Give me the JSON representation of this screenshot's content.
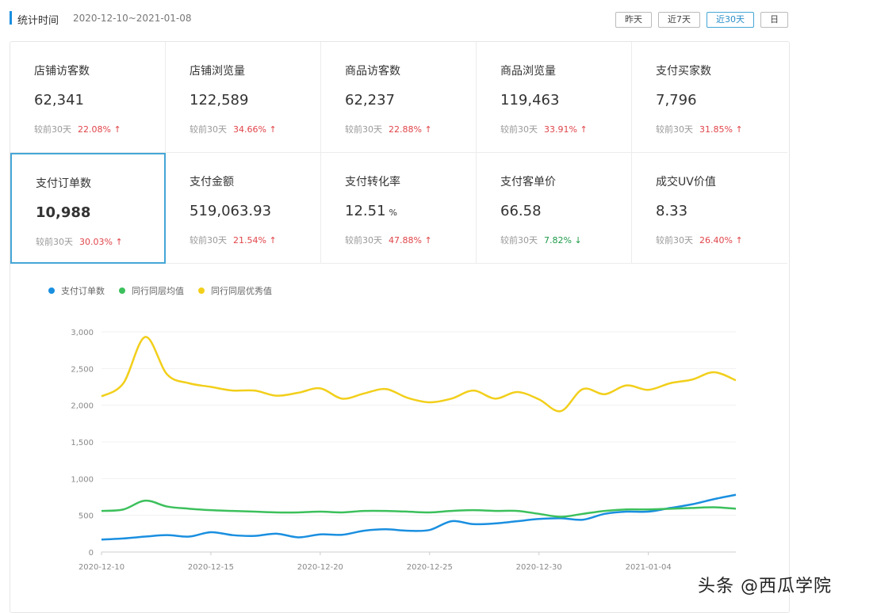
{
  "header": {
    "label": "统计时间",
    "range": "2020-12-10~2021-01-08",
    "buttons": [
      {
        "label": "昨天",
        "active": false
      },
      {
        "label": "近7天",
        "active": false
      },
      {
        "label": "近30天",
        "active": true
      },
      {
        "label": "日",
        "active": false
      }
    ]
  },
  "metrics": [
    {
      "title": "店铺访客数",
      "value": "62,341",
      "compare": "较前30天",
      "pct": "22.08%",
      "dir": "up"
    },
    {
      "title": "店铺浏览量",
      "value": "122,589",
      "compare": "较前30天",
      "pct": "34.66%",
      "dir": "up"
    },
    {
      "title": "商品访客数",
      "value": "62,237",
      "compare": "较前30天",
      "pct": "22.88%",
      "dir": "up"
    },
    {
      "title": "商品浏览量",
      "value": "119,463",
      "compare": "较前30天",
      "pct": "33.91%",
      "dir": "up"
    },
    {
      "title": "支付买家数",
      "value": "7,796",
      "compare": "较前30天",
      "pct": "31.85%",
      "dir": "up"
    },
    {
      "title": "支付订单数",
      "value": "10,988",
      "compare": "较前30天",
      "pct": "30.03%",
      "dir": "up"
    },
    {
      "title": "支付金额",
      "value": "519,063.93",
      "compare": "较前30天",
      "pct": "21.54%",
      "dir": "up"
    },
    {
      "title": "支付转化率",
      "value": "12.51",
      "unit": "%",
      "compare": "较前30天",
      "pct": "47.88%",
      "dir": "up"
    },
    {
      "title": "支付客单价",
      "value": "66.58",
      "compare": "较前30天",
      "pct": "7.82%",
      "dir": "down"
    },
    {
      "title": "成交UV价值",
      "value": "8.33",
      "compare": "较前30天",
      "pct": "26.40%",
      "dir": "up"
    }
  ],
  "chart_data": {
    "type": "line",
    "x": [
      "2020-12-10",
      "2020-12-11",
      "2020-12-12",
      "2020-12-13",
      "2020-12-14",
      "2020-12-15",
      "2020-12-16",
      "2020-12-17",
      "2020-12-18",
      "2020-12-19",
      "2020-12-20",
      "2020-12-21",
      "2020-12-22",
      "2020-12-23",
      "2020-12-24",
      "2020-12-25",
      "2020-12-26",
      "2020-12-27",
      "2020-12-28",
      "2020-12-29",
      "2020-12-30",
      "2020-12-31",
      "2021-01-01",
      "2021-01-02",
      "2021-01-03",
      "2021-01-04",
      "2021-01-05",
      "2021-01-06",
      "2021-01-07",
      "2021-01-08"
    ],
    "xticks": [
      "2020-12-10",
      "2020-12-15",
      "2020-12-20",
      "2020-12-25",
      "2020-12-30",
      "2021-01-04"
    ],
    "yticks": [
      "0",
      "500",
      "1,000",
      "1,500",
      "2,000",
      "2,500",
      "3,000"
    ],
    "ylim": [
      0,
      3000
    ],
    "series": [
      {
        "name": "支付订单数",
        "color": "#1a8fe0",
        "values": [
          170,
          185,
          210,
          230,
          210,
          270,
          230,
          220,
          250,
          200,
          240,
          235,
          290,
          310,
          290,
          300,
          420,
          380,
          390,
          420,
          450,
          460,
          440,
          520,
          550,
          550,
          600,
          650,
          720,
          780
        ]
      },
      {
        "name": "同行同层均值",
        "color": "#3cc05c",
        "values": [
          560,
          580,
          700,
          620,
          590,
          570,
          560,
          550,
          540,
          540,
          550,
          540,
          560,
          560,
          550,
          540,
          560,
          570,
          560,
          560,
          520,
          480,
          520,
          560,
          580,
          580,
          590,
          600,
          610,
          590
        ]
      },
      {
        "name": "同行同层优秀值",
        "color": "#f2cf1b",
        "values": [
          2120,
          2300,
          2930,
          2420,
          2300,
          2250,
          2200,
          2200,
          2130,
          2170,
          2230,
          2090,
          2160,
          2220,
          2100,
          2040,
          2090,
          2200,
          2090,
          2180,
          2080,
          1920,
          2220,
          2150,
          2270,
          2210,
          2300,
          2350,
          2450,
          2340
        ]
      }
    ]
  },
  "watermark": "头条 @西瓜学院"
}
